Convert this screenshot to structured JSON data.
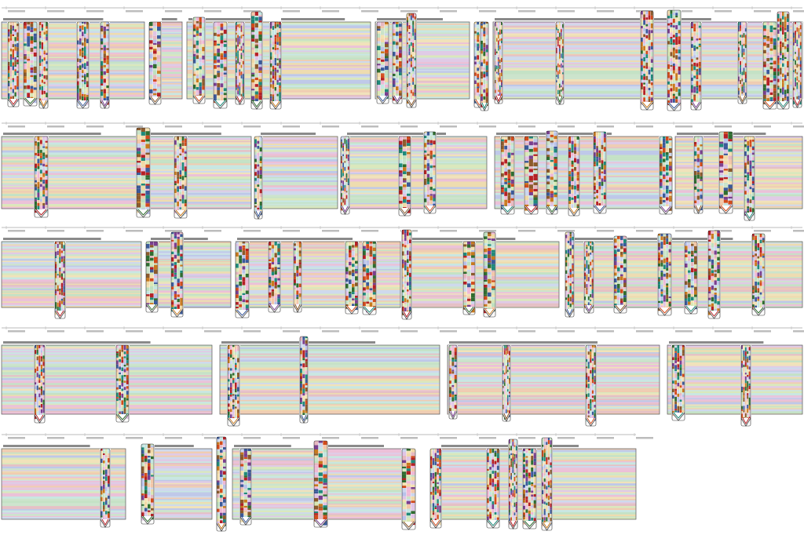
{
  "diagram": {
    "type": "sequence-variation-graph",
    "row_count": 5,
    "colors": {
      "background": "#ffffff",
      "block_fill": "#dfe7e3",
      "block_outline": "#555555",
      "ruler": "#bbbbbb",
      "stripe_palette": [
        "#e6b8c0",
        "#c9e3c8",
        "#f1d9a6",
        "#cbd6ee",
        "#e0c4e6",
        "#c4e6e2",
        "#f3c7a8",
        "#d9e8b5",
        "#b9c2ea",
        "#efb8d6",
        "#bfe0bf",
        "#f4e1b2"
      ],
      "strong_palette": [
        "#b52025",
        "#2f6d2f",
        "#c87a1e",
        "#3b5a9a",
        "#7a3f8f",
        "#8c5a2b",
        "#d24b1b",
        "#1f8a7a"
      ]
    },
    "label_style": "illegible",
    "sequence_text": "illegible"
  }
}
